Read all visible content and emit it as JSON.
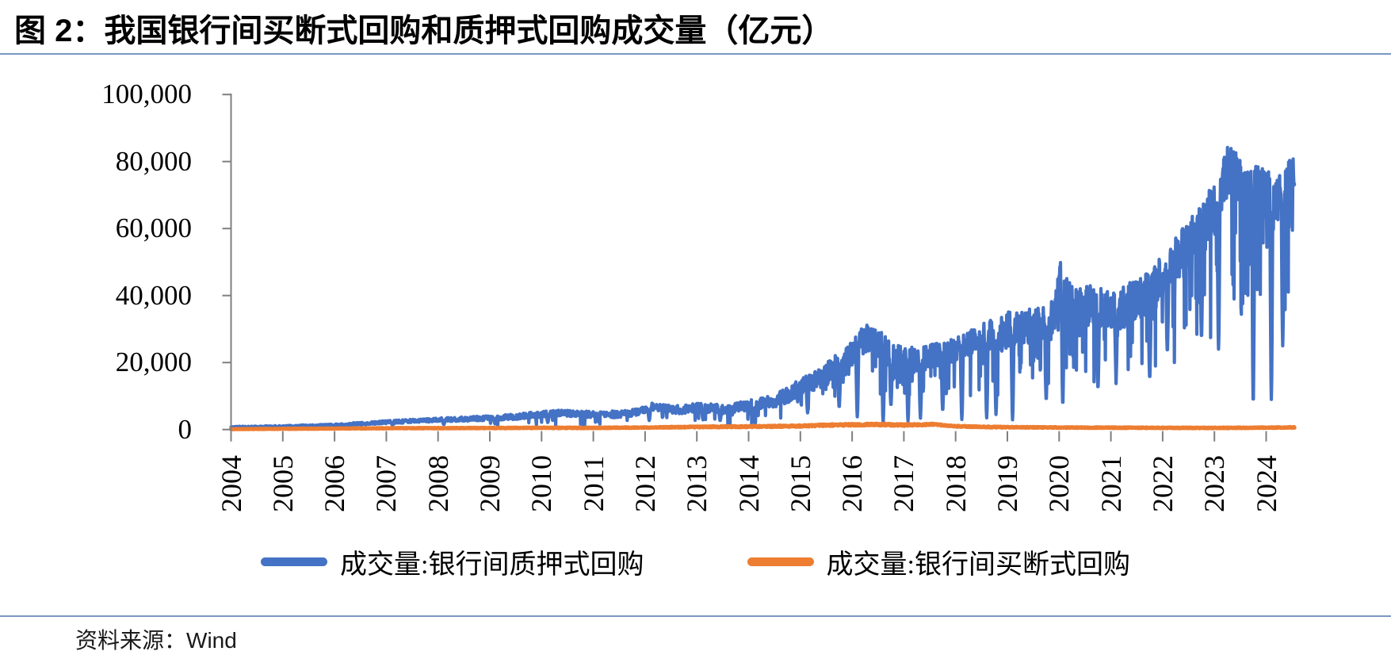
{
  "title": "图 2：我国银行间买断式回购和质押式回购成交量（亿元）",
  "source": {
    "label": "资料来源：",
    "value": "Wind"
  },
  "colors": {
    "pledged_blue": "#4472C4",
    "outright_orange": "#ED7D31",
    "axis_gray": "#7F7F7F",
    "divider_blue": "#7B97C0",
    "background": "#FFFFFF"
  },
  "legend": [
    {
      "label": "成交量:银行间质押式回购",
      "color": "#4472C4"
    },
    {
      "label": "成交量:银行间买断式回购",
      "color": "#ED7D31"
    }
  ],
  "chart_data": {
    "type": "line",
    "title": "图 2：我国银行间买断式回购和质押式回购成交量（亿元）",
    "unit": "亿元",
    "xlabel": "",
    "ylabel": "",
    "grid": false,
    "legend_position": "bottom",
    "ylim": [
      0,
      100000
    ],
    "ytick_values": [
      0,
      20000,
      40000,
      60000,
      80000,
      100000
    ],
    "ytick_labels": [
      "0",
      "20,000",
      "40,000",
      "60,000",
      "80,000",
      "100,000"
    ],
    "xtick_years": [
      "2004",
      "2005",
      "2006",
      "2007",
      "2008",
      "2009",
      "2010",
      "2011",
      "2012",
      "2013",
      "2014",
      "2015",
      "2016",
      "2017",
      "2018",
      "2019",
      "2020",
      "2021",
      "2022",
      "2023",
      "2024"
    ],
    "x_range": [
      2004.0,
      2024.55
    ],
    "sampling_note": "daily turnover series, values in 亿元; trend points read from chart, noise band and holiday dips reproduce daily volatility",
    "series": [
      {
        "name": "成交量:银行间质押式回购",
        "color": "#4472C4",
        "stroke_width": 4.2,
        "min_value": 120,
        "shocks": true,
        "trend": [
          [
            2004.0,
            700
          ],
          [
            2005.0,
            900
          ],
          [
            2006.0,
            1300
          ],
          [
            2007.0,
            2200
          ],
          [
            2008.0,
            2900
          ],
          [
            2009.0,
            3400
          ],
          [
            2009.5,
            3800
          ],
          [
            2010.0,
            4600
          ],
          [
            2010.3,
            5000
          ],
          [
            2011.0,
            4400
          ],
          [
            2011.5,
            4600
          ],
          [
            2011.9,
            5300
          ],
          [
            2012.1,
            6800
          ],
          [
            2012.4,
            6200
          ],
          [
            2012.7,
            5900
          ],
          [
            2013.0,
            6600
          ],
          [
            2013.3,
            6300
          ],
          [
            2013.6,
            5900
          ],
          [
            2013.9,
            7000
          ],
          [
            2014.2,
            7800
          ],
          [
            2014.5,
            8600
          ],
          [
            2014.8,
            10500
          ],
          [
            2015.0,
            13000
          ],
          [
            2015.25,
            14500
          ],
          [
            2015.5,
            16500
          ],
          [
            2015.75,
            19500
          ],
          [
            2016.0,
            22500
          ],
          [
            2016.2,
            27000
          ],
          [
            2016.4,
            27500
          ],
          [
            2016.6,
            24500
          ],
          [
            2016.8,
            22000
          ],
          [
            2017.0,
            20500
          ],
          [
            2017.3,
            21000
          ],
          [
            2017.6,
            22000
          ],
          [
            2017.9,
            23000
          ],
          [
            2018.2,
            25000
          ],
          [
            2018.5,
            27000
          ],
          [
            2018.8,
            28500
          ],
          [
            2019.0,
            30000
          ],
          [
            2019.3,
            30500
          ],
          [
            2019.6,
            31000
          ],
          [
            2019.9,
            34000
          ],
          [
            2020.03,
            45000
          ],
          [
            2020.1,
            40000
          ],
          [
            2020.3,
            36000
          ],
          [
            2020.6,
            37000
          ],
          [
            2020.9,
            36500
          ],
          [
            2021.2,
            36000
          ],
          [
            2021.5,
            39000
          ],
          [
            2021.8,
            41000
          ],
          [
            2022.0,
            46000
          ],
          [
            2022.3,
            52000
          ],
          [
            2022.6,
            57000
          ],
          [
            2022.9,
            64000
          ],
          [
            2023.1,
            70000
          ],
          [
            2023.25,
            77000
          ],
          [
            2023.4,
            76000
          ],
          [
            2023.6,
            70000
          ],
          [
            2023.8,
            72000
          ],
          [
            2024.0,
            70000
          ],
          [
            2024.2,
            69000
          ],
          [
            2024.4,
            72000
          ],
          [
            2024.55,
            76000
          ]
        ],
        "noise_amp": [
          [
            2004,
            250
          ],
          [
            2006,
            350
          ],
          [
            2008,
            550
          ],
          [
            2010,
            900
          ],
          [
            2012,
            1100
          ],
          [
            2014,
            1500
          ],
          [
            2015,
            2500
          ],
          [
            2016,
            4200
          ],
          [
            2017,
            3800
          ],
          [
            2018,
            3800
          ],
          [
            2019,
            5200
          ],
          [
            2020,
            6000
          ],
          [
            2021,
            6000
          ],
          [
            2022,
            6500
          ],
          [
            2023,
            7500
          ],
          [
            2024.55,
            7000
          ]
        ],
        "holiday_dips": [
          [
            2007.12,
            1300
          ],
          [
            2008.11,
            1500
          ],
          [
            2009.1,
            1700
          ],
          [
            2010.12,
            2100
          ],
          [
            2011.1,
            2300
          ],
          [
            2012.08,
            2700
          ],
          [
            2013.12,
            2900
          ],
          [
            2013.45,
            2600
          ],
          [
            2014.09,
            3400
          ],
          [
            2015.14,
            5000
          ],
          [
            2015.75,
            6500
          ],
          [
            2016.1,
            3800
          ],
          [
            2016.6,
            2000
          ],
          [
            2016.75,
            7000
          ],
          [
            2017.08,
            2600
          ],
          [
            2017.32,
            3400
          ],
          [
            2017.75,
            5500
          ],
          [
            2018.12,
            3000
          ],
          [
            2018.6,
            3500
          ],
          [
            2018.78,
            4500
          ],
          [
            2019.1,
            2900
          ],
          [
            2019.75,
            8500
          ],
          [
            2020.07,
            7000
          ],
          [
            2020.75,
            12000
          ],
          [
            2021.1,
            16000
          ],
          [
            2021.75,
            15000
          ],
          [
            2022.09,
            23000
          ],
          [
            2022.75,
            27000
          ],
          [
            2023.08,
            24000
          ],
          [
            2023.75,
            7000
          ],
          [
            2024.1,
            9000
          ],
          [
            2024.32,
            25000
          ]
        ]
      },
      {
        "name": "成交量:银行间买断式回购",
        "color": "#ED7D31",
        "stroke_width": 5,
        "min_value": 60,
        "shocks": false,
        "trend": [
          [
            2004.0,
            130
          ],
          [
            2005.0,
            220
          ],
          [
            2006.0,
            300
          ],
          [
            2007.0,
            400
          ],
          [
            2008.0,
            430
          ],
          [
            2009.0,
            460
          ],
          [
            2010.0,
            520
          ],
          [
            2011.0,
            500
          ],
          [
            2012.0,
            620
          ],
          [
            2013.0,
            780
          ],
          [
            2014.0,
            880
          ],
          [
            2015.0,
            1050
          ],
          [
            2015.5,
            1300
          ],
          [
            2016.0,
            1450
          ],
          [
            2016.5,
            1500
          ],
          [
            2017.0,
            1350
          ],
          [
            2017.6,
            1550
          ],
          [
            2018.0,
            1000
          ],
          [
            2018.5,
            800
          ],
          [
            2019.0,
            700
          ],
          [
            2020.0,
            620
          ],
          [
            2021.0,
            560
          ],
          [
            2022.0,
            520
          ],
          [
            2023.0,
            480
          ],
          [
            2024.0,
            560
          ],
          [
            2024.55,
            650
          ]
        ],
        "noise_amp": [
          [
            2004,
            60
          ],
          [
            2008,
            110
          ],
          [
            2012,
            150
          ],
          [
            2015,
            260
          ],
          [
            2016,
            300
          ],
          [
            2017,
            300
          ],
          [
            2018,
            200
          ],
          [
            2020,
            140
          ],
          [
            2024.55,
            140
          ]
        ],
        "holiday_dips": []
      }
    ]
  }
}
